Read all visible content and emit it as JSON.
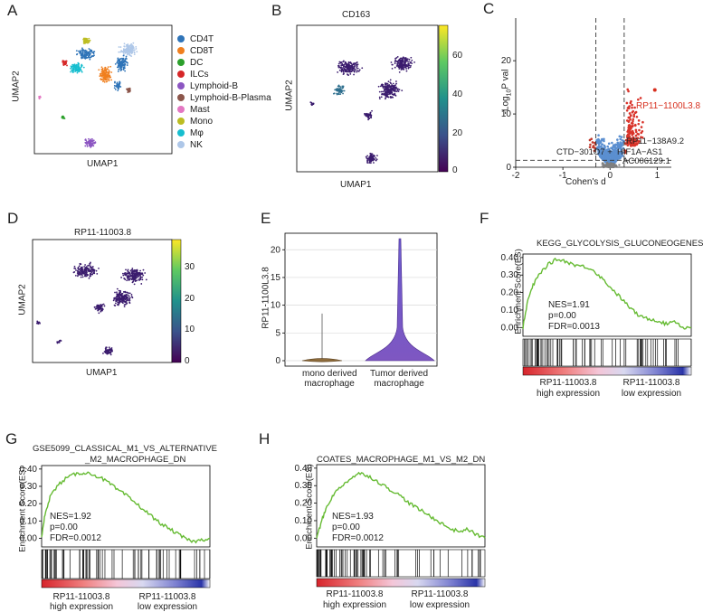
{
  "panels": {
    "a": {
      "letter": "A",
      "xlabel": "UMAP1",
      "ylabel": "UMAP2",
      "legend": [
        {
          "label": "CD4T",
          "color": "#2f74b8"
        },
        {
          "label": "CD8T",
          "color": "#f07f1e"
        },
        {
          "label": "DC",
          "color": "#2ca02c"
        },
        {
          "label": "ILCs",
          "color": "#d62728"
        },
        {
          "label": "Lymphoid-B",
          "color": "#8c56c2"
        },
        {
          "label": "Lymphoid-B-Plasma",
          "color": "#8c564b"
        },
        {
          "label": "Mast",
          "color": "#e377c2"
        },
        {
          "label": "Mono",
          "color": "#bcbd22"
        },
        {
          "label": "Mφ",
          "color": "#17becf"
        },
        {
          "label": "NK",
          "color": "#aec7e8"
        }
      ]
    },
    "b": {
      "letter": "B",
      "title": "CD163",
      "xlabel": "UMAP1",
      "ylabel": "UMAP2",
      "colorbar_ticks": [
        "60",
        "40",
        "20",
        "0"
      ]
    },
    "c": {
      "letter": "C",
      "xlabel": "Cohen's d",
      "ylabel_main": "-Log",
      "ylabel_sub": "10",
      "ylabel_tail": "P val",
      "highlight_label": "RP11−1100L3.8",
      "labels": [
        "RP11−138A9.2",
        "CTD−301O7 +",
        "HIF1A−AS1",
        "AC006129.1"
      ]
    },
    "d": {
      "letter": "D",
      "title": "RP11-11003.8",
      "xlabel": "UMAP1",
      "ylabel": "UMAP2",
      "colorbar_ticks": [
        "30",
        "20",
        "10",
        "0"
      ]
    },
    "e": {
      "letter": "E",
      "ylabel": "RP11-1100L3.8",
      "groups": [
        "mono derived",
        "Tumor derived"
      ],
      "groups2": [
        "macrophage",
        "macrophage"
      ]
    },
    "f": {
      "letter": "F",
      "title": "KEGG_GLYCOLYSIS_GLUCONEOGENESIS",
      "ylabel": "Enrichment Score(ES)",
      "nes": "NES=1.91",
      "p": "p=0.00",
      "fdr": "FDR=0.0013",
      "high1": "RP11-11003.8",
      "high2": "high expression",
      "low1": "RP11-11003.8",
      "low2": "low expression"
    },
    "g": {
      "letter": "G",
      "title1": "GSE5099_CLASSICAL_M1_VS_ALTERNATIVE",
      "title2": "_M2_MACROPHAGE_DN",
      "ylabel": "Enrichment Score(ES)",
      "nes": "NES=1.92",
      "p": "p=0.00",
      "fdr": "FDR=0.0012",
      "high1": "RP11-11003.8",
      "high2": "high expression",
      "low1": "RP11-11003.8",
      "low2": "low expression"
    },
    "h": {
      "letter": "H",
      "title": "COATES_MACROPHAGE_M1_VS_M2_DN",
      "ylabel": "Enrichment Score(ES)",
      "nes": "NES=1.93",
      "p": "p=0.00",
      "fdr": "FDR=0.0012",
      "high1": "RP11-11003.8",
      "high2": "high expression",
      "low1": "RP11-11003.8",
      "low2": "low expression"
    }
  },
  "chart_data": [
    {
      "type": "scatter",
      "id": "C",
      "title": "",
      "xlabel": "Cohen's d",
      "ylabel": "-Log10 P val",
      "xlim": [
        -2,
        1.3
      ],
      "ylim": [
        0,
        28
      ],
      "xticks": [
        -2,
        -1,
        0,
        1
      ],
      "yticks": [
        0,
        10,
        20
      ],
      "thresholds": {
        "x": [
          -0.3,
          0.3
        ],
        "y": 1.3
      },
      "highlight": {
        "label": "RP11-1100L3.8",
        "x": 0.95,
        "y": 14.5
      }
    },
    {
      "type": "violin",
      "id": "E",
      "ylabel": "RP11-1100L3.8",
      "categories": [
        "mono derived macrophage",
        "Tumor derived macrophage"
      ],
      "ylim": [
        0,
        22
      ],
      "yticks": [
        0,
        5,
        10,
        15,
        20
      ],
      "max_values": [
        8.5,
        22
      ]
    },
    {
      "type": "line",
      "id": "F",
      "title": "KEGG_GLYCOLYSIS_GLUCONEOGENESIS",
      "ylabel": "Enrichment Score(ES)",
      "ylim": [
        -0.05,
        0.42
      ],
      "yticks": [
        "0.00",
        "0.10",
        "0.20",
        "0.30",
        "0.40"
      ],
      "x": [
        0,
        3,
        6,
        10,
        15,
        20,
        25,
        30,
        35,
        40,
        45,
        50,
        55,
        60,
        65,
        70,
        75,
        80,
        85,
        90,
        95,
        100
      ],
      "values": [
        0.0,
        0.16,
        0.24,
        0.31,
        0.36,
        0.39,
        0.38,
        0.36,
        0.35,
        0.34,
        0.3,
        0.25,
        0.2,
        0.15,
        0.1,
        0.06,
        0.05,
        0.04,
        0.02,
        0.04,
        0.0,
        0.0
      ],
      "annotations": [
        "NES=1.91",
        "p=0.00",
        "FDR=0.0013"
      ]
    },
    {
      "type": "line",
      "id": "G",
      "title": "GSE5099_CLASSICAL_M1_VS_ALTERNATIVE_M2_MACROPHAGE_DN",
      "ylabel": "Enrichment Score(ES)",
      "ylim": [
        -0.05,
        0.42
      ],
      "yticks": [
        "0.00",
        "0.10",
        "0.20",
        "0.30",
        "0.40"
      ],
      "x": [
        0,
        2,
        5,
        10,
        15,
        20,
        25,
        30,
        35,
        40,
        45,
        50,
        55,
        60,
        65,
        70,
        75,
        80,
        85,
        90,
        95,
        100
      ],
      "values": [
        0.0,
        0.14,
        0.24,
        0.31,
        0.35,
        0.37,
        0.38,
        0.37,
        0.35,
        0.32,
        0.28,
        0.25,
        0.21,
        0.17,
        0.13,
        0.09,
        0.06,
        0.03,
        0.0,
        -0.02,
        -0.01,
        0.0
      ],
      "annotations": [
        "NES=1.92",
        "p=0.00",
        "FDR=0.0012"
      ]
    },
    {
      "type": "line",
      "id": "H",
      "title": "COATES_MACROPHAGE_M1_VS_M2_DN",
      "ylabel": "Enrichment Score(ES)",
      "ylim": [
        -0.05,
        0.42
      ],
      "yticks": [
        "0.00",
        "0.10",
        "0.20",
        "0.30",
        "0.40"
      ],
      "x": [
        0,
        3,
        6,
        10,
        15,
        20,
        25,
        30,
        35,
        40,
        45,
        50,
        55,
        60,
        65,
        70,
        75,
        80,
        85,
        90,
        95,
        100
      ],
      "values": [
        0.0,
        0.1,
        0.18,
        0.25,
        0.3,
        0.34,
        0.37,
        0.36,
        0.33,
        0.3,
        0.27,
        0.24,
        0.2,
        0.17,
        0.14,
        0.11,
        0.08,
        0.05,
        0.04,
        0.05,
        0.02,
        0.0
      ],
      "annotations": [
        "NES=1.93",
        "p=0.00",
        "FDR=0.0012"
      ]
    }
  ]
}
